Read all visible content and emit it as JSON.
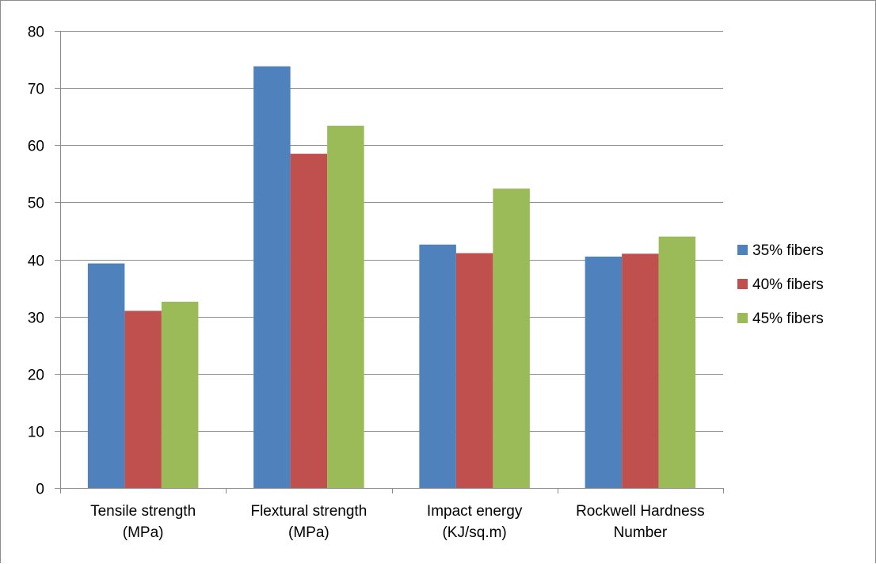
{
  "chart_data": {
    "type": "bar",
    "title": "",
    "xlabel": "",
    "ylabel": "",
    "categories": [
      [
        "Tensile strength",
        "(MPa)"
      ],
      [
        "Flextural strength",
        "(MPa)"
      ],
      [
        "Impact energy",
        "(KJ/sq.m)"
      ],
      [
        "Rockwell Hardness",
        "Number"
      ]
    ],
    "series": [
      {
        "name": "35% fibers",
        "color": "#4F81BD",
        "values": [
          39.3,
          73.8,
          42.6,
          40.5
        ]
      },
      {
        "name": "40% fibers",
        "color": "#C0504D",
        "values": [
          31.0,
          58.5,
          41.1,
          41.0
        ]
      },
      {
        "name": "45% fibers",
        "color": "#9BBB59",
        "values": [
          32.6,
          63.4,
          52.4,
          44.0
        ]
      }
    ],
    "ylim": [
      0,
      80
    ],
    "ytick_step": 10,
    "grid": true,
    "legend_position": "right"
  }
}
